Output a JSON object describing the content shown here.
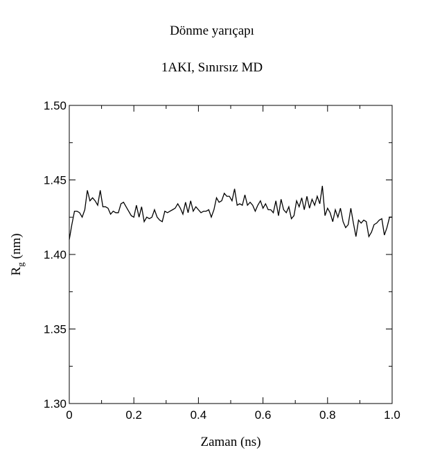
{
  "chart_data": {
    "type": "line",
    "title": "Dönme yarıçapı",
    "subtitle": "1AKI, Sınırsız MD",
    "xlabel": "Zaman (ns)",
    "ylabel_main": "R",
    "ylabel_sub": "g",
    "ylabel_unit": " (nm)",
    "xlim": [
      0,
      1.0
    ],
    "ylim": [
      1.3,
      1.5
    ],
    "x_ticks": [
      "0",
      "0.2",
      "0.4",
      "0.6",
      "0.8",
      "1.0"
    ],
    "y_ticks": [
      "1.30",
      "1.35",
      "1.40",
      "1.45",
      "1.50"
    ],
    "grid": false,
    "line_color": "#000000",
    "series": [
      {
        "x": [
          0.0,
          0.008,
          0.016,
          0.024,
          0.032,
          0.04,
          0.048,
          0.056,
          0.064,
          0.072,
          0.08,
          0.088,
          0.096,
          0.104,
          0.112,
          0.12,
          0.128,
          0.136,
          0.144,
          0.152,
          0.16,
          0.168,
          0.176,
          0.184,
          0.192,
          0.2,
          0.208,
          0.216,
          0.224,
          0.232,
          0.24,
          0.248,
          0.256,
          0.264,
          0.272,
          0.28,
          0.288,
          0.296,
          0.304,
          0.312,
          0.32,
          0.328,
          0.336,
          0.344,
          0.352,
          0.36,
          0.368,
          0.376,
          0.384,
          0.392,
          0.4,
          0.408,
          0.416,
          0.424,
          0.432,
          0.44,
          0.448,
          0.456,
          0.464,
          0.472,
          0.48,
          0.488,
          0.496,
          0.504,
          0.512,
          0.52,
          0.528,
          0.536,
          0.544,
          0.552,
          0.56,
          0.568,
          0.576,
          0.584,
          0.592,
          0.6,
          0.608,
          0.616,
          0.624,
          0.632,
          0.64,
          0.648,
          0.656,
          0.664,
          0.672,
          0.68,
          0.688,
          0.696,
          0.704,
          0.712,
          0.72,
          0.728,
          0.736,
          0.744,
          0.752,
          0.76,
          0.768,
          0.776,
          0.784,
          0.792,
          0.8,
          0.808,
          0.816,
          0.824,
          0.832,
          0.84,
          0.848,
          0.856,
          0.864,
          0.872,
          0.88,
          0.888,
          0.896,
          0.904,
          0.912,
          0.92,
          0.928,
          0.936,
          0.944,
          0.952,
          0.96,
          0.968,
          0.976,
          0.984,
          0.992,
          1.0
        ],
        "y": [
          1.41,
          1.42,
          1.429,
          1.429,
          1.428,
          1.425,
          1.43,
          1.443,
          1.436,
          1.438,
          1.436,
          1.433,
          1.443,
          1.432,
          1.432,
          1.431,
          1.427,
          1.429,
          1.428,
          1.428,
          1.434,
          1.435,
          1.432,
          1.429,
          1.426,
          1.425,
          1.433,
          1.425,
          1.432,
          1.422,
          1.425,
          1.424,
          1.425,
          1.43,
          1.425,
          1.423,
          1.422,
          1.429,
          1.428,
          1.429,
          1.43,
          1.431,
          1.434,
          1.431,
          1.427,
          1.435,
          1.428,
          1.436,
          1.429,
          1.432,
          1.43,
          1.428,
          1.429,
          1.429,
          1.43,
          1.425,
          1.43,
          1.438,
          1.435,
          1.436,
          1.441,
          1.439,
          1.439,
          1.436,
          1.444,
          1.433,
          1.434,
          1.433,
          1.44,
          1.433,
          1.435,
          1.433,
          1.429,
          1.433,
          1.436,
          1.431,
          1.434,
          1.43,
          1.43,
          1.428,
          1.436,
          1.426,
          1.437,
          1.43,
          1.428,
          1.432,
          1.424,
          1.426,
          1.436,
          1.432,
          1.438,
          1.43,
          1.439,
          1.431,
          1.437,
          1.433,
          1.439,
          1.434,
          1.446,
          1.426,
          1.431,
          1.428,
          1.422,
          1.43,
          1.425,
          1.431,
          1.422,
          1.418,
          1.42,
          1.431,
          1.421,
          1.412,
          1.423,
          1.421,
          1.423,
          1.422,
          1.412,
          1.415,
          1.42,
          1.421,
          1.423,
          1.424,
          1.413,
          1.418,
          1.425,
          1.425
        ]
      }
    ]
  }
}
